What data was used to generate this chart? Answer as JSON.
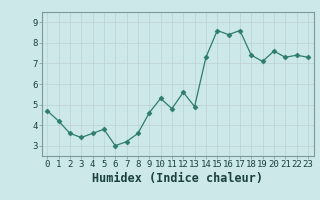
{
  "xlabel": "Humidex (Indice chaleur)",
  "ylabel": "",
  "x_values": [
    0,
    1,
    2,
    3,
    4,
    5,
    6,
    7,
    8,
    9,
    10,
    11,
    12,
    13,
    14,
    15,
    16,
    17,
    18,
    19,
    20,
    21,
    22,
    23
  ],
  "y_values": [
    4.7,
    4.2,
    3.6,
    3.4,
    3.6,
    3.8,
    3.0,
    3.2,
    3.6,
    4.6,
    5.3,
    4.8,
    5.6,
    4.9,
    7.3,
    8.6,
    8.4,
    8.6,
    7.4,
    7.1,
    7.6,
    7.3,
    7.4,
    7.3
  ],
  "ylim": [
    2.5,
    9.5
  ],
  "xlim": [
    -0.5,
    23.5
  ],
  "yticks": [
    3,
    4,
    5,
    6,
    7,
    8,
    9
  ],
  "xticks": [
    0,
    1,
    2,
    3,
    4,
    5,
    6,
    7,
    8,
    9,
    10,
    11,
    12,
    13,
    14,
    15,
    16,
    17,
    18,
    19,
    20,
    21,
    22,
    23
  ],
  "line_color": "#2e7d6b",
  "marker": "D",
  "marker_size": 2.5,
  "bg_color": "#cce8e8",
  "grid_color_major": "#c0d4d4",
  "grid_color_minor": "#d8e8e8",
  "tick_fontsize": 6.5,
  "xlabel_fontsize": 8.5,
  "spine_color": "#7a9a9a"
}
